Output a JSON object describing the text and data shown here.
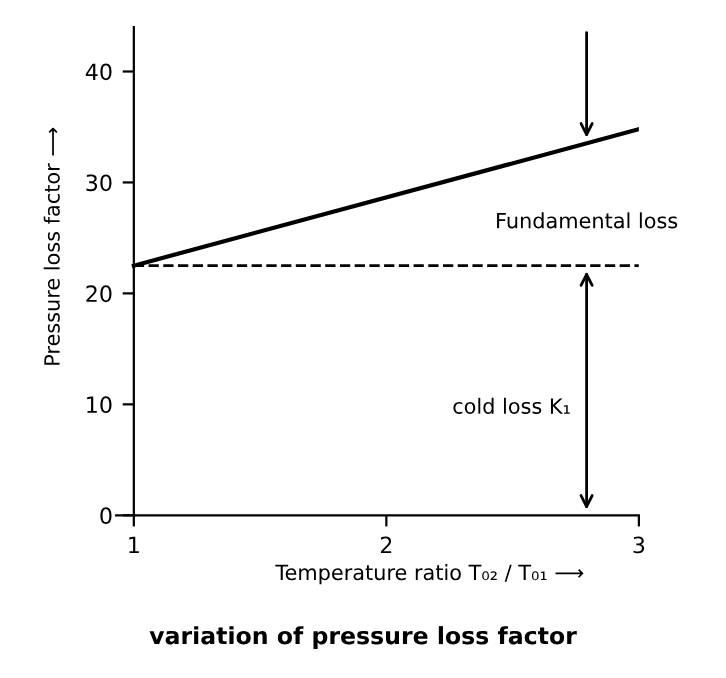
{
  "chart_data": {
    "type": "line",
    "title": "variation of pressure loss factor",
    "xlabel": "Temperature ratio T₀₂ / T₀₁ ⟶",
    "ylabel": "Pressure loss factor ⟶",
    "x": [
      1,
      3
    ],
    "series": [
      {
        "color": "#000000",
        "values": [
          22.5,
          34.8
        ]
      }
    ],
    "ref_lines": [
      {
        "axis": "y",
        "value": 22.5,
        "color": "#000000",
        "line_style": "dashed"
      }
    ],
    "annotations": [
      "Fundamental loss",
      "cold loss K₁"
    ],
    "xlim": [
      0.93,
      3
    ],
    "ylim": [
      0,
      44
    ],
    "xticks": [
      1,
      2,
      3
    ],
    "yticks": [
      0,
      10,
      20,
      30,
      40
    ],
    "grid": false,
    "legend": false,
    "marker": "none",
    "line_style": "solid"
  }
}
